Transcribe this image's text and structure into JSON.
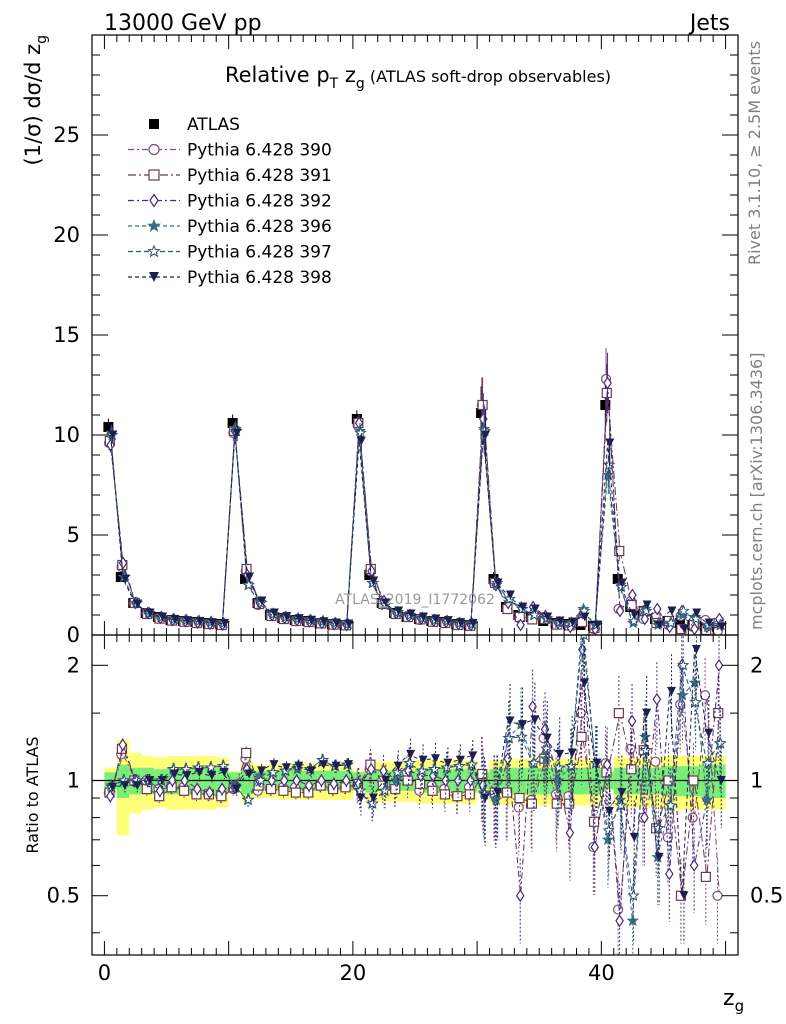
{
  "header": {
    "energy": "13000 GeV pp",
    "category": "Jets",
    "side_rivet": "Rivet 3.1.10, ≥ 2.5M events",
    "side_mcplots": "mcplots.cern.ch [arXiv:1306.3436]",
    "watermark": "ATLAS_2019_I1772062"
  },
  "chart_data": [
    {
      "panel": "main",
      "type": "scatter",
      "title": "Relative p_T z_g (ATLAS soft-drop observables)",
      "title_parts": {
        "main": "Relative p",
        "sub1": "T",
        "mid": " z",
        "sub2": "g",
        "tail": " (ATLAS soft-drop observables)"
      },
      "xlabel": "z_g",
      "ylabel": "(1/σ) dσ/d z_g",
      "ylabel_parts": {
        "main": "(1/σ) dσ/d z",
        "sub": "g"
      },
      "xlim": [
        -1,
        51
      ],
      "ylim": [
        0,
        30
      ],
      "x_ticks": [
        0,
        20,
        40
      ],
      "y_ticks": [
        0,
        5,
        10,
        15,
        20,
        25
      ],
      "legend_position": "top-left",
      "x": [
        0.5,
        1.5,
        2.5,
        3.5,
        4.5,
        5.5,
        6.5,
        7.5,
        8.5,
        9.5,
        10.5,
        11.5,
        12.5,
        13.5,
        14.5,
        15.5,
        16.5,
        17.5,
        18.5,
        19.5,
        20.5,
        21.5,
        22.5,
        23.5,
        24.5,
        25.5,
        26.5,
        27.5,
        28.5,
        29.5,
        30.5,
        31.5,
        32.5,
        33.5,
        34.5,
        35.5,
        36.5,
        37.5,
        38.5,
        39.5,
        40.5,
        41.5,
        42.5,
        43.5,
        44.5,
        45.5,
        46.5,
        47.5,
        48.5,
        49.5
      ],
      "series": [
        {
          "name": "ATLAS",
          "color": "#000000",
          "marker": "square-filled",
          "values": [
            10.4,
            2.9,
            1.6,
            1.1,
            0.9,
            0.75,
            0.7,
            0.65,
            0.6,
            0.55,
            10.6,
            2.8,
            1.6,
            1.0,
            0.85,
            0.75,
            0.7,
            0.6,
            0.55,
            0.5,
            10.8,
            3.0,
            1.6,
            1.1,
            0.9,
            0.8,
            0.7,
            0.65,
            0.55,
            0.5,
            11.1,
            2.8,
            1.4,
            1.0,
            0.9,
            0.7,
            0.6,
            0.55,
            0.5,
            0.45,
            11.5,
            2.8,
            1.4,
            1.0,
            0.8,
            0.7,
            0.6,
            0.5,
            0.45,
            0.4
          ]
        },
        {
          "name": "Pythia 6.428 390",
          "color": "#7a4c82",
          "marker": "circle-open",
          "values": [
            9.6,
            3.4,
            1.6,
            1.1,
            0.85,
            0.72,
            0.67,
            0.6,
            0.55,
            0.5,
            10.1,
            3.2,
            1.5,
            0.95,
            0.82,
            0.72,
            0.66,
            0.58,
            0.52,
            0.48,
            10.5,
            3.2,
            1.6,
            1.05,
            0.95,
            0.75,
            0.68,
            0.62,
            0.5,
            0.48,
            11.5,
            2.6,
            1.3,
            0.85,
            0.8,
            0.9,
            0.55,
            0.5,
            0.75,
            0.3,
            12.8,
            1.3,
            1.7,
            0.8,
            0.9,
            0.5,
            0.95,
            0.4,
            0.75,
            0.2
          ]
        },
        {
          "name": "Pythia 6.428 391",
          "color": "#6b3a4f",
          "marker": "square-open",
          "values": [
            9.7,
            3.5,
            1.6,
            1.05,
            0.82,
            0.72,
            0.66,
            0.6,
            0.55,
            0.5,
            10.2,
            3.3,
            1.55,
            0.95,
            0.8,
            0.7,
            0.65,
            0.58,
            0.52,
            0.48,
            10.6,
            3.3,
            1.55,
            1.05,
            0.9,
            0.78,
            0.66,
            0.6,
            0.5,
            0.46,
            11.5,
            2.6,
            1.3,
            0.9,
            0.78,
            0.8,
            0.52,
            0.48,
            0.65,
            0.35,
            12.1,
            4.2,
            1.5,
            1.2,
            0.6,
            0.7,
            0.3,
            0.5,
            0.25,
            0.6
          ]
        },
        {
          "name": "Pythia 6.428 392",
          "color": "#4a2a7a",
          "marker": "diamond-open",
          "values": [
            9.5,
            3.6,
            1.6,
            1.1,
            0.85,
            0.75,
            0.7,
            0.62,
            0.56,
            0.52,
            10.2,
            3.0,
            1.6,
            1.0,
            0.85,
            0.75,
            0.68,
            0.6,
            0.54,
            0.5,
            10.6,
            3.2,
            1.7,
            1.1,
            0.95,
            0.82,
            0.72,
            0.65,
            0.55,
            0.5,
            10.8,
            2.5,
            1.6,
            0.5,
            1.4,
            0.95,
            0.6,
            0.4,
            1.1,
            0.3,
            12.6,
            1.2,
            2.0,
            0.8,
            1.3,
            0.4,
            1.2,
            0.3,
            0.4,
            0.8
          ]
        },
        {
          "name": "Pythia 6.428 396",
          "color": "#3b6e80",
          "marker": "star-filled",
          "values": [
            10.1,
            2.9,
            1.6,
            1.1,
            0.9,
            0.8,
            0.75,
            0.7,
            0.65,
            0.6,
            10.3,
            2.5,
            1.65,
            1.05,
            0.9,
            0.8,
            0.75,
            0.68,
            0.6,
            0.55,
            10.2,
            2.6,
            1.5,
            1.1,
            1.0,
            0.85,
            0.75,
            0.7,
            0.6,
            0.55,
            10.3,
            2.5,
            1.8,
            1.4,
            1.0,
            0.8,
            0.6,
            0.6,
            1.3,
            0.5,
            8.0,
            2.5,
            0.6,
            1.3,
            0.5,
            0.6,
            1.0,
            0.9,
            0.4,
            0.5
          ]
        },
        {
          "name": "Pythia 6.428 397",
          "color": "#2e5275",
          "marker": "star-open",
          "values": [
            10.0,
            2.9,
            1.6,
            1.1,
            0.9,
            0.8,
            0.75,
            0.7,
            0.65,
            0.6,
            10.2,
            2.5,
            1.6,
            1.05,
            0.9,
            0.82,
            0.75,
            0.68,
            0.6,
            0.55,
            10.1,
            2.6,
            1.5,
            1.15,
            1.0,
            0.85,
            0.75,
            0.7,
            0.6,
            0.55,
            10.2,
            2.6,
            1.8,
            1.3,
            1.0,
            0.85,
            0.65,
            0.6,
            1.2,
            0.5,
            8.5,
            2.4,
            0.7,
            1.2,
            0.6,
            0.6,
            1.2,
            0.8,
            0.5,
            0.5
          ]
        },
        {
          "name": "Pythia 6.428 398",
          "color": "#1f1f4f",
          "marker": "triangle-down-filled",
          "values": [
            10.0,
            2.8,
            1.55,
            1.1,
            0.9,
            0.78,
            0.72,
            0.68,
            0.62,
            0.58,
            10.1,
            2.9,
            1.7,
            1.1,
            0.92,
            0.82,
            0.74,
            0.66,
            0.6,
            0.55,
            9.7,
            2.7,
            1.6,
            1.2,
            1.05,
            0.9,
            0.8,
            0.72,
            0.62,
            0.58,
            10.0,
            2.6,
            2.0,
            1.4,
            1.3,
            0.9,
            0.7,
            0.65,
            0.9,
            0.5,
            9.6,
            2.6,
            1.0,
            1.5,
            0.5,
            1.2,
            0.3,
            1.1,
            0.6,
            0.4
          ]
        }
      ]
    },
    {
      "panel": "ratio",
      "type": "scatter",
      "ylabel": "Ratio to ATLAS",
      "xlabel": "z_g",
      "xlim": [
        -1,
        51
      ],
      "ylim": [
        0.35,
        2.4
      ],
      "y_scale": "log",
      "y_ticks": [
        0.5,
        1,
        2
      ],
      "x_ticks": [
        0,
        20,
        40
      ],
      "x": [
        0.5,
        1.5,
        2.5,
        3.5,
        4.5,
        5.5,
        6.5,
        7.5,
        8.5,
        9.5,
        10.5,
        11.5,
        12.5,
        13.5,
        14.5,
        15.5,
        16.5,
        17.5,
        18.5,
        19.5,
        20.5,
        21.5,
        22.5,
        23.5,
        24.5,
        25.5,
        26.5,
        27.5,
        28.5,
        29.5,
        30.5,
        31.5,
        32.5,
        33.5,
        34.5,
        35.5,
        36.5,
        37.5,
        38.5,
        39.5,
        40.5,
        41.5,
        42.5,
        43.5,
        44.5,
        45.5,
        46.5,
        47.5,
        48.5,
        49.5
      ],
      "band_stat": [
        0.05,
        0.1,
        0.08,
        0.08,
        0.07,
        0.08,
        0.08,
        0.08,
        0.08,
        0.08,
        0.05,
        0.08,
        0.06,
        0.06,
        0.06,
        0.06,
        0.06,
        0.06,
        0.06,
        0.06,
        0.05,
        0.07,
        0.06,
        0.06,
        0.06,
        0.07,
        0.07,
        0.07,
        0.07,
        0.07,
        0.05,
        0.07,
        0.08,
        0.08,
        0.08,
        0.08,
        0.08,
        0.08,
        0.08,
        0.08,
        0.05,
        0.08,
        0.08,
        0.08,
        0.08,
        0.09,
        0.09,
        0.09,
        0.1,
        0.1
      ],
      "band_total": [
        0.08,
        0.28,
        0.18,
        0.16,
        0.15,
        0.16,
        0.16,
        0.16,
        0.16,
        0.15,
        0.06,
        0.12,
        0.1,
        0.1,
        0.11,
        0.11,
        0.11,
        0.11,
        0.11,
        0.11,
        0.06,
        0.12,
        0.12,
        0.12,
        0.12,
        0.13,
        0.13,
        0.13,
        0.13,
        0.13,
        0.06,
        0.13,
        0.14,
        0.14,
        0.14,
        0.14,
        0.14,
        0.14,
        0.14,
        0.14,
        0.06,
        0.15,
        0.15,
        0.15,
        0.15,
        0.16,
        0.16,
        0.16,
        0.16,
        0.16
      ],
      "series": [
        {
          "name": "Pythia 6.428 390",
          "color": "#7a4c82",
          "marker": "circle-open",
          "values": [
            0.93,
            1.17,
            1.0,
            1.0,
            0.95,
            0.96,
            0.96,
            0.93,
            0.92,
            0.91,
            0.95,
            1.14,
            0.94,
            0.95,
            0.96,
            0.96,
            0.94,
            0.97,
            0.95,
            0.96,
            0.97,
            1.07,
            1.0,
            0.95,
            1.05,
            0.94,
            0.97,
            0.95,
            0.91,
            0.96,
            1.04,
            0.93,
            0.93,
            0.85,
            0.89,
            1.29,
            0.92,
            0.91,
            1.5,
            0.67,
            1.11,
            0.46,
            1.21,
            0.8,
            1.12,
            0.71,
            1.58,
            0.8,
            1.67,
            0.5
          ]
        },
        {
          "name": "Pythia 6.428 391",
          "color": "#6b3a4f",
          "marker": "square-open",
          "values": [
            0.93,
            1.21,
            1.0,
            0.95,
            0.91,
            0.96,
            0.94,
            0.92,
            0.92,
            0.91,
            0.96,
            1.18,
            0.97,
            0.95,
            0.94,
            0.93,
            0.93,
            0.97,
            0.95,
            0.96,
            0.98,
            1.1,
            0.97,
            0.95,
            1.0,
            0.98,
            0.94,
            0.92,
            0.91,
            0.92,
            1.04,
            0.93,
            0.93,
            0.9,
            0.87,
            1.14,
            0.87,
            0.87,
            1.3,
            0.78,
            1.05,
            1.5,
            1.07,
            1.2,
            0.75,
            1.0,
            0.5,
            1.0,
            0.56,
            1.5
          ]
        },
        {
          "name": "Pythia 6.428 392",
          "color": "#4a2a7a",
          "marker": "diamond-open",
          "values": [
            0.91,
            1.24,
            1.0,
            1.0,
            0.94,
            1.0,
            1.0,
            0.95,
            0.93,
            0.95,
            0.96,
            1.07,
            1.0,
            1.0,
            1.0,
            1.0,
            0.97,
            1.0,
            0.98,
            1.0,
            0.98,
            1.07,
            1.06,
            1.0,
            1.06,
            1.03,
            1.03,
            1.0,
            1.0,
            1.0,
            0.97,
            0.89,
            1.14,
            0.5,
            1.56,
            1.36,
            1.0,
            0.73,
            2.2,
            0.67,
            1.1,
            0.43,
            1.43,
            0.8,
            1.63,
            0.57,
            2.0,
            0.6,
            0.89,
            2.0
          ]
        },
        {
          "name": "Pythia 6.428 396",
          "color": "#3b6e80",
          "marker": "star-filled",
          "values": [
            0.97,
            1.0,
            1.0,
            1.0,
            1.0,
            1.07,
            1.07,
            1.08,
            1.08,
            1.09,
            0.97,
            0.89,
            1.03,
            1.05,
            1.06,
            1.07,
            1.07,
            1.13,
            1.09,
            1.1,
            0.94,
            0.87,
            0.94,
            1.0,
            1.11,
            1.06,
            1.07,
            1.08,
            1.09,
            1.1,
            0.93,
            0.89,
            1.29,
            1.4,
            1.11,
            1.14,
            1.0,
            1.09,
            2.6,
            1.11,
            0.7,
            0.89,
            0.43,
            1.3,
            0.63,
            0.86,
            1.67,
            1.8,
            0.89,
            1.25
          ]
        },
        {
          "name": "Pythia 6.428 397",
          "color": "#2e5275",
          "marker": "star-open",
          "values": [
            0.96,
            1.0,
            1.0,
            1.0,
            1.0,
            1.07,
            1.07,
            1.08,
            1.08,
            1.09,
            0.96,
            0.89,
            1.0,
            1.05,
            1.06,
            1.09,
            1.07,
            1.13,
            1.09,
            1.1,
            0.94,
            0.87,
            0.94,
            1.05,
            1.11,
            1.06,
            1.07,
            1.08,
            1.09,
            1.1,
            0.92,
            0.93,
            1.29,
            1.3,
            1.11,
            1.21,
            1.08,
            1.09,
            2.4,
            1.11,
            0.74,
            0.86,
            0.5,
            1.2,
            0.75,
            0.86,
            2.0,
            1.6,
            1.11,
            1.25
          ]
        },
        {
          "name": "Pythia 6.428 398",
          "color": "#1f1f4f",
          "marker": "triangle-down-filled",
          "values": [
            0.96,
            0.97,
            0.97,
            1.0,
            1.0,
            1.04,
            1.03,
            1.05,
            1.03,
            1.05,
            0.95,
            1.04,
            1.06,
            1.1,
            1.08,
            1.09,
            1.06,
            1.1,
            1.09,
            1.1,
            0.9,
            0.9,
            1.0,
            1.09,
            1.17,
            1.13,
            1.14,
            1.11,
            1.13,
            1.16,
            0.9,
            0.93,
            1.43,
            1.4,
            1.44,
            1.29,
            1.17,
            1.18,
            1.8,
            1.11,
            0.83,
            0.93,
            0.71,
            1.5,
            0.63,
            1.71,
            0.5,
            2.2,
            1.33,
            1.0
          ]
        }
      ]
    }
  ]
}
